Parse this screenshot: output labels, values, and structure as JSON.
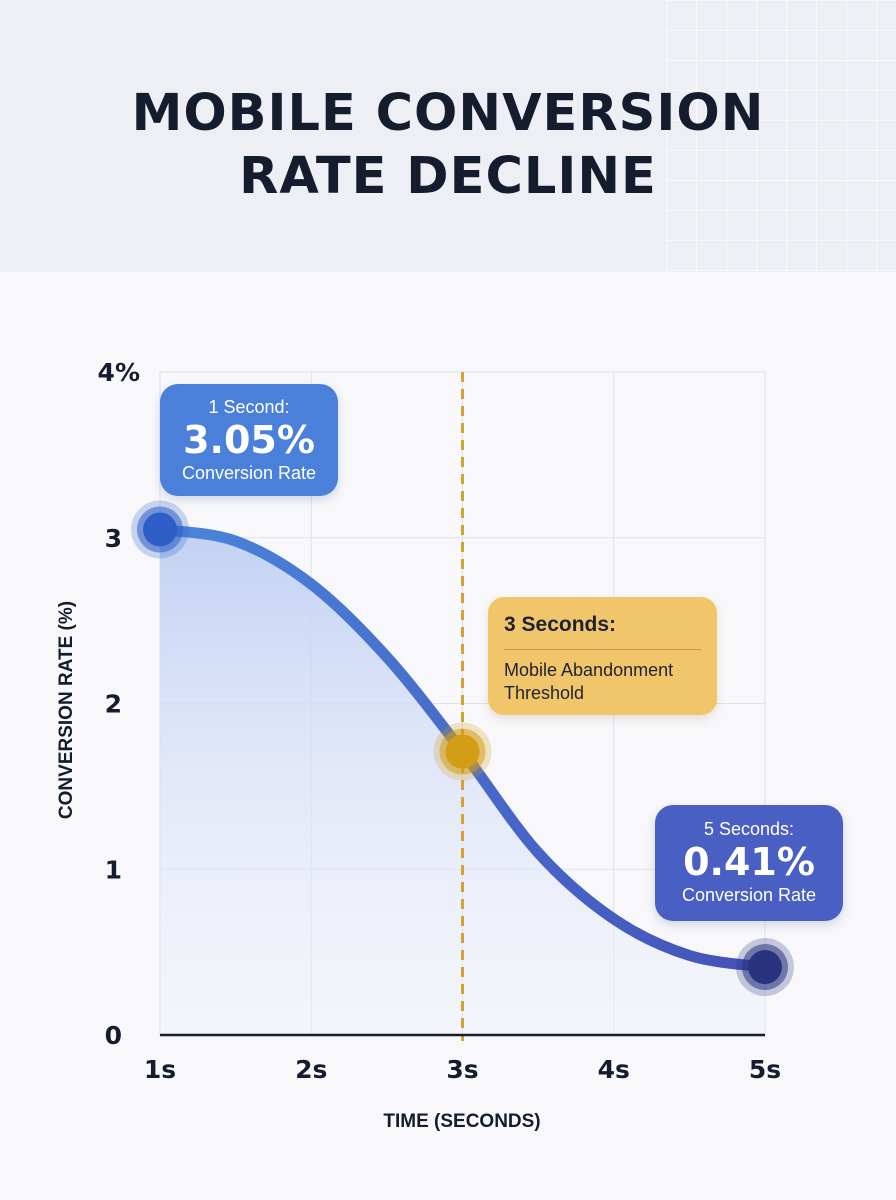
{
  "title_lines": [
    "MOBILE CONVERSION",
    "RATE DECLINE"
  ],
  "colors": {
    "line_start": "#4a86dc",
    "line_end": "#4550b8",
    "fill": "#c4d3f3",
    "threshold": "#d3a237",
    "callout_blue": "#4a80da",
    "callout_indigo": "#4a5fc4",
    "callout_yellow": "#f1c66a",
    "text": "#141c2e"
  },
  "chart_data": {
    "type": "area",
    "x": [
      1,
      2,
      3,
      4,
      5
    ],
    "xticks": [
      "1s",
      "2s",
      "3s",
      "4s",
      "5s"
    ],
    "yticks": [
      "0",
      "1",
      "2",
      "3",
      "4%"
    ],
    "ylim": [
      0,
      4
    ],
    "xlim": [
      1,
      5
    ],
    "xlabel": "TIME (SECONDS)",
    "ylabel": "CONVERSION RATE (%)",
    "grid": true,
    "series": [
      {
        "curve": [
          [
            1.0,
            3.05
          ],
          [
            1.5,
            2.98
          ],
          [
            2.0,
            2.72
          ],
          [
            2.5,
            2.28
          ],
          [
            3.0,
            1.71
          ],
          [
            3.5,
            1.1
          ],
          [
            4.0,
            0.7
          ],
          [
            4.5,
            0.48
          ],
          [
            5.0,
            0.41
          ]
        ],
        "markers": [
          {
            "x": 1,
            "y": 3.05,
            "color": "#2f5fc6"
          },
          {
            "x": 3,
            "y": 1.71,
            "color": "#d39e16"
          },
          {
            "x": 5,
            "y": 0.41,
            "color": "#29347f"
          }
        ]
      }
    ],
    "threshold": {
      "x": 3
    },
    "annotations": [
      {
        "head": "1 Second:",
        "value": "3.05%",
        "sub": "Conversion Rate"
      },
      {
        "head": "3 Seconds:",
        "body": "Mobile Abandonment Threshold"
      },
      {
        "head": "5 Seconds:",
        "value": "0.41%",
        "sub": "Conversion Rate"
      }
    ]
  }
}
